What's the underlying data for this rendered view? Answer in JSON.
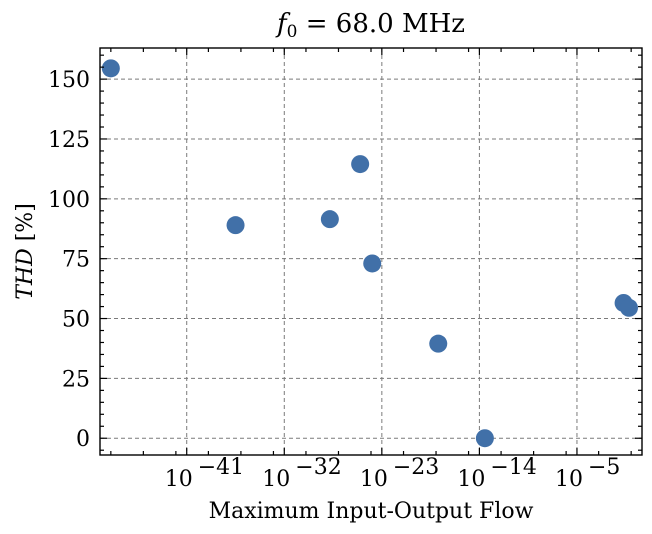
{
  "chart_data": {
    "type": "scatter",
    "title": "f0 = 68.0 MHz",
    "xlabel": "Maximum Input-Output Flow",
    "ylabel": "THD [%]",
    "x_scale": "log",
    "xlim": [
      1e-49,
      10.0
    ],
    "ylim": [
      -7,
      163
    ],
    "x_ticks": [
      1e-41,
      1e-32,
      1e-23,
      1e-14,
      1e-05
    ],
    "x_tick_labels": [
      "10",
      "10",
      "10",
      "10",
      "10"
    ],
    "x_tick_exponents": [
      "−41",
      "−32",
      "−23",
      "−14",
      "−5"
    ],
    "y_ticks": [
      0,
      25,
      50,
      75,
      100,
      125,
      150
    ],
    "y_tick_labels": [
      "0",
      "25",
      "50",
      "75",
      "100",
      "125",
      "150"
    ],
    "grid": true,
    "color": "#4170a8",
    "x": [
      1e-48,
      3.2e-37,
      1.6e-28,
      1e-25,
      1.3e-24,
      1.6e-18,
      3.2e-14,
      0.2,
      0.63
    ],
    "y": [
      154.5,
      89,
      91.5,
      114.5,
      73,
      39.5,
      0,
      56.5,
      54.5
    ]
  }
}
